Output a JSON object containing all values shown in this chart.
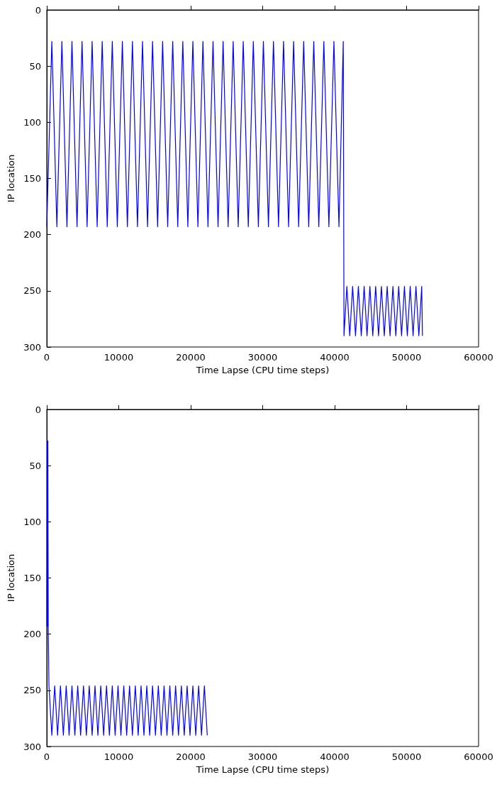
{
  "chart_data": [
    {
      "type": "line",
      "xlabel": "Time Lapse (CPU time steps)",
      "ylabel": "IP location",
      "xlim": [
        0,
        60000
      ],
      "xticks": [
        0,
        10000,
        20000,
        30000,
        40000,
        50000,
        60000
      ],
      "ylim": [
        300,
        0
      ],
      "yticks": [
        0,
        50,
        100,
        150,
        200,
        250,
        300
      ],
      "marker": "none",
      "series": [
        {
          "color": "#0000ff",
          "x": [
            0,
            700,
            1400,
            2100,
            2800,
            3500,
            4200,
            4900,
            5600,
            6300,
            7000,
            7700,
            8400,
            9100,
            9800,
            10500,
            11200,
            11900,
            12600,
            13300,
            14000,
            14700,
            15400,
            16100,
            16800,
            17500,
            18200,
            18900,
            19600,
            20300,
            21000,
            21700,
            22400,
            23100,
            23800,
            24500,
            25200,
            25900,
            26600,
            27300,
            28000,
            28700,
            29400,
            30100,
            30800,
            31500,
            32200,
            32900,
            33600,
            34300,
            35000,
            35700,
            36400,
            37100,
            37800,
            38500,
            39200,
            39900,
            40600,
            41200,
            41300,
            41700,
            42100,
            42500,
            42900,
            43300,
            43700,
            44100,
            44500,
            44900,
            45300,
            45700,
            46100,
            46500,
            46900,
            47300,
            47700,
            48100,
            48500,
            48900,
            49300,
            49700,
            50100,
            50500,
            50900,
            51300,
            51700,
            52100,
            52200
          ],
          "values": [
            193,
            28,
            193,
            28,
            193,
            28,
            193,
            28,
            193,
            28,
            193,
            28,
            193,
            28,
            193,
            28,
            193,
            28,
            193,
            28,
            193,
            28,
            193,
            28,
            193,
            28,
            193,
            28,
            193,
            28,
            193,
            28,
            193,
            28,
            193,
            28,
            193,
            28,
            193,
            28,
            193,
            28,
            193,
            28,
            193,
            28,
            193,
            28,
            193,
            28,
            193,
            28,
            193,
            28,
            193,
            28,
            193,
            28,
            193,
            28,
            290,
            246,
            290,
            246,
            290,
            246,
            290,
            246,
            290,
            246,
            290,
            246,
            290,
            246,
            290,
            246,
            290,
            246,
            290,
            246,
            290,
            246,
            290,
            246,
            290,
            246,
            290,
            246,
            290
          ]
        }
      ]
    },
    {
      "type": "line",
      "xlabel": "Time Lapse (CPU time steps)",
      "ylabel": "IP location",
      "xlim": [
        0,
        60000
      ],
      "xticks": [
        0,
        10000,
        20000,
        30000,
        40000,
        50000,
        60000
      ],
      "ylim": [
        300,
        0
      ],
      "yticks": [
        0,
        50,
        100,
        150,
        200,
        250,
        300
      ],
      "marker": "none",
      "series": [
        {
          "color": "#0000ff",
          "x": [
            0,
            50,
            100,
            150,
            200,
            300,
            700,
            1100,
            1500,
            1900,
            2300,
            2700,
            3100,
            3500,
            3900,
            4300,
            4700,
            5100,
            5500,
            5900,
            6300,
            6700,
            7100,
            7500,
            7900,
            8300,
            8700,
            9100,
            9500,
            9900,
            10300,
            10700,
            11100,
            11500,
            11900,
            12300,
            12700,
            13100,
            13500,
            13900,
            14300,
            14700,
            15100,
            15500,
            15900,
            16300,
            16700,
            17100,
            17500,
            17900,
            18300,
            18700,
            19100,
            19500,
            19900,
            20300,
            20700,
            21100,
            21500,
            21900,
            22300
          ],
          "values": [
            193,
            28,
            193,
            28,
            193,
            246,
            290,
            246,
            290,
            246,
            290,
            246,
            290,
            246,
            290,
            246,
            290,
            246,
            290,
            246,
            290,
            246,
            290,
            246,
            290,
            246,
            290,
            246,
            290,
            246,
            290,
            246,
            290,
            246,
            290,
            246,
            290,
            246,
            290,
            246,
            290,
            246,
            290,
            246,
            290,
            246,
            290,
            246,
            290,
            246,
            290,
            246,
            290,
            246,
            290,
            246,
            290,
            246,
            290,
            246,
            290
          ]
        }
      ]
    }
  ]
}
